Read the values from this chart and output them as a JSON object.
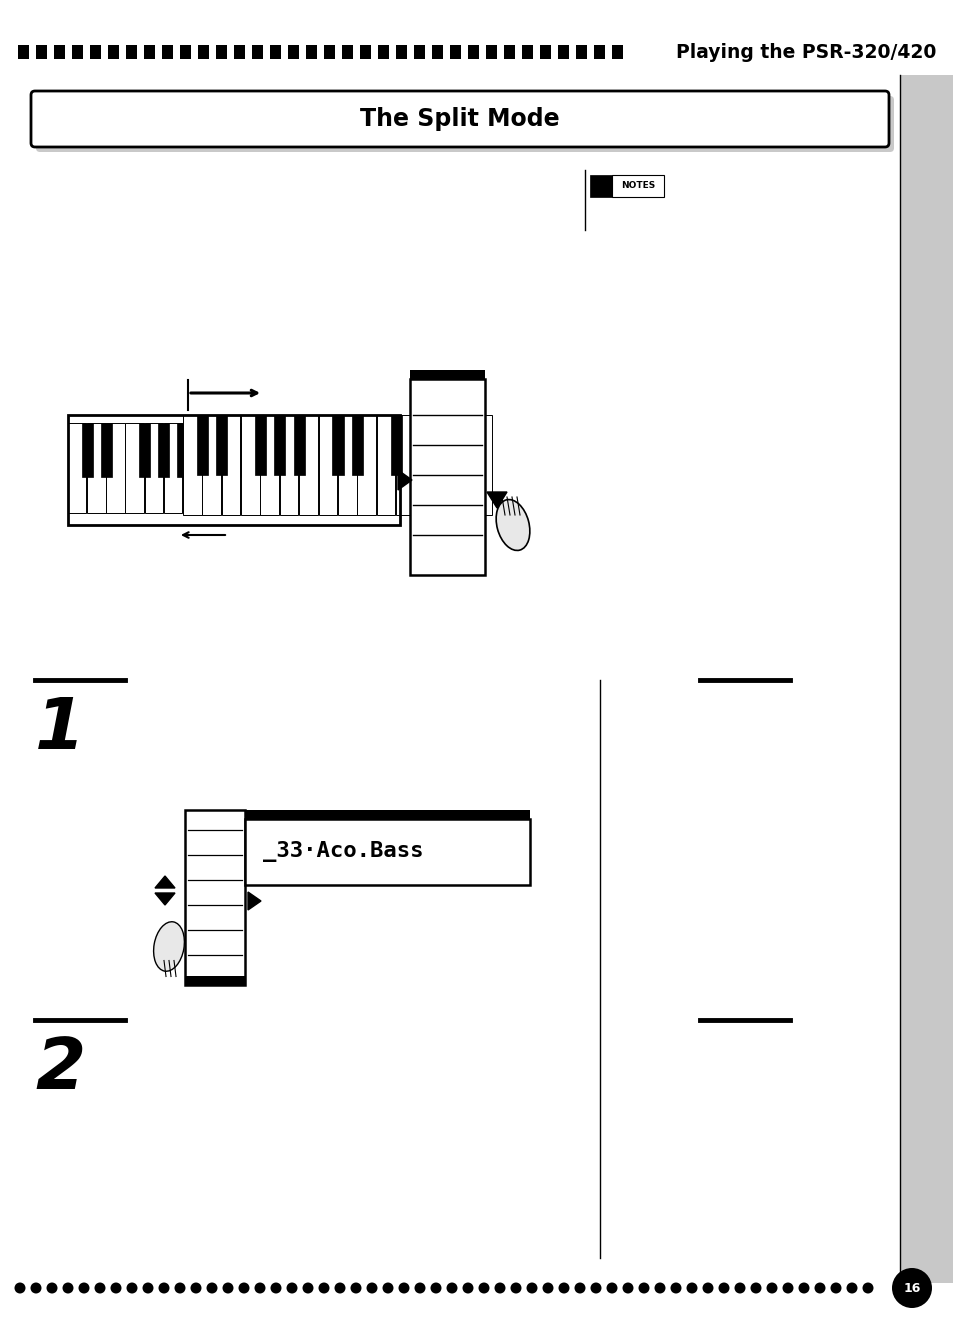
{
  "bg_color": "#ffffff",
  "page_width": 9.54,
  "page_height": 13.18,
  "header_title": "Playing the PSR-320/420",
  "section_title": "The Split Mode",
  "step1_num": "1",
  "step2_num": "2",
  "notes_label": "NOTES",
  "display_text": "_33·Aco.Bass",
  "sidebar_color": "#c8c8c8",
  "dpi": 100
}
